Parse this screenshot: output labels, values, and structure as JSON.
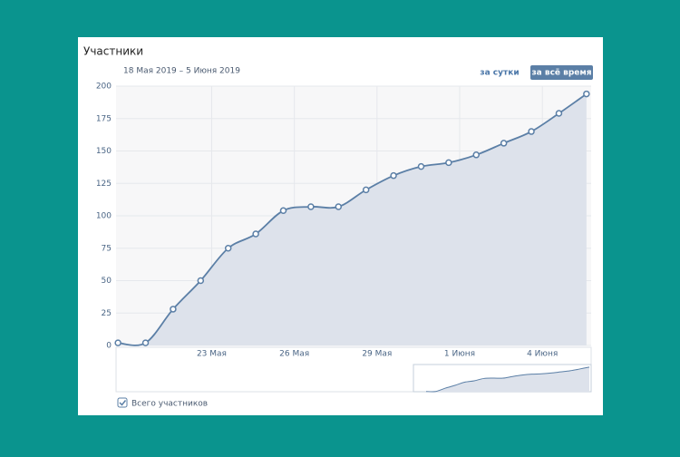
{
  "chart_data": {
    "type": "line",
    "title": "Участники",
    "subtitle": "18 Мая 2019 – 5 Июня 2019",
    "buttons": [
      "за сутки",
      "за всё время"
    ],
    "x": [
      0,
      1,
      2,
      3,
      4,
      5,
      6,
      7,
      8,
      9,
      10,
      11,
      12,
      13,
      14,
      15,
      16,
      17
    ],
    "series": [
      {
        "name": "Всего участников",
        "color": "#5b7fa6",
        "values": [
          2,
          2,
          28,
          50,
          75,
          86,
          104,
          107,
          107,
          120,
          131,
          138,
          141,
          147,
          156,
          165,
          179,
          194
        ]
      }
    ],
    "xlim": [
      -0.07,
      17.17
    ],
    "xticks": [
      {
        "value": 3.4,
        "label": "23 Мая"
      },
      {
        "value": 6.4,
        "label": "26 Мая"
      },
      {
        "value": 9.4,
        "label": "29 Мая"
      },
      {
        "value": 12.4,
        "label": "1 Июня"
      },
      {
        "value": 15.4,
        "label": "4 Июня"
      }
    ],
    "ylim": [
      0,
      200
    ],
    "yticks": [
      0,
      25,
      50,
      75,
      100,
      125,
      150,
      175,
      200
    ],
    "grid": true
  }
}
